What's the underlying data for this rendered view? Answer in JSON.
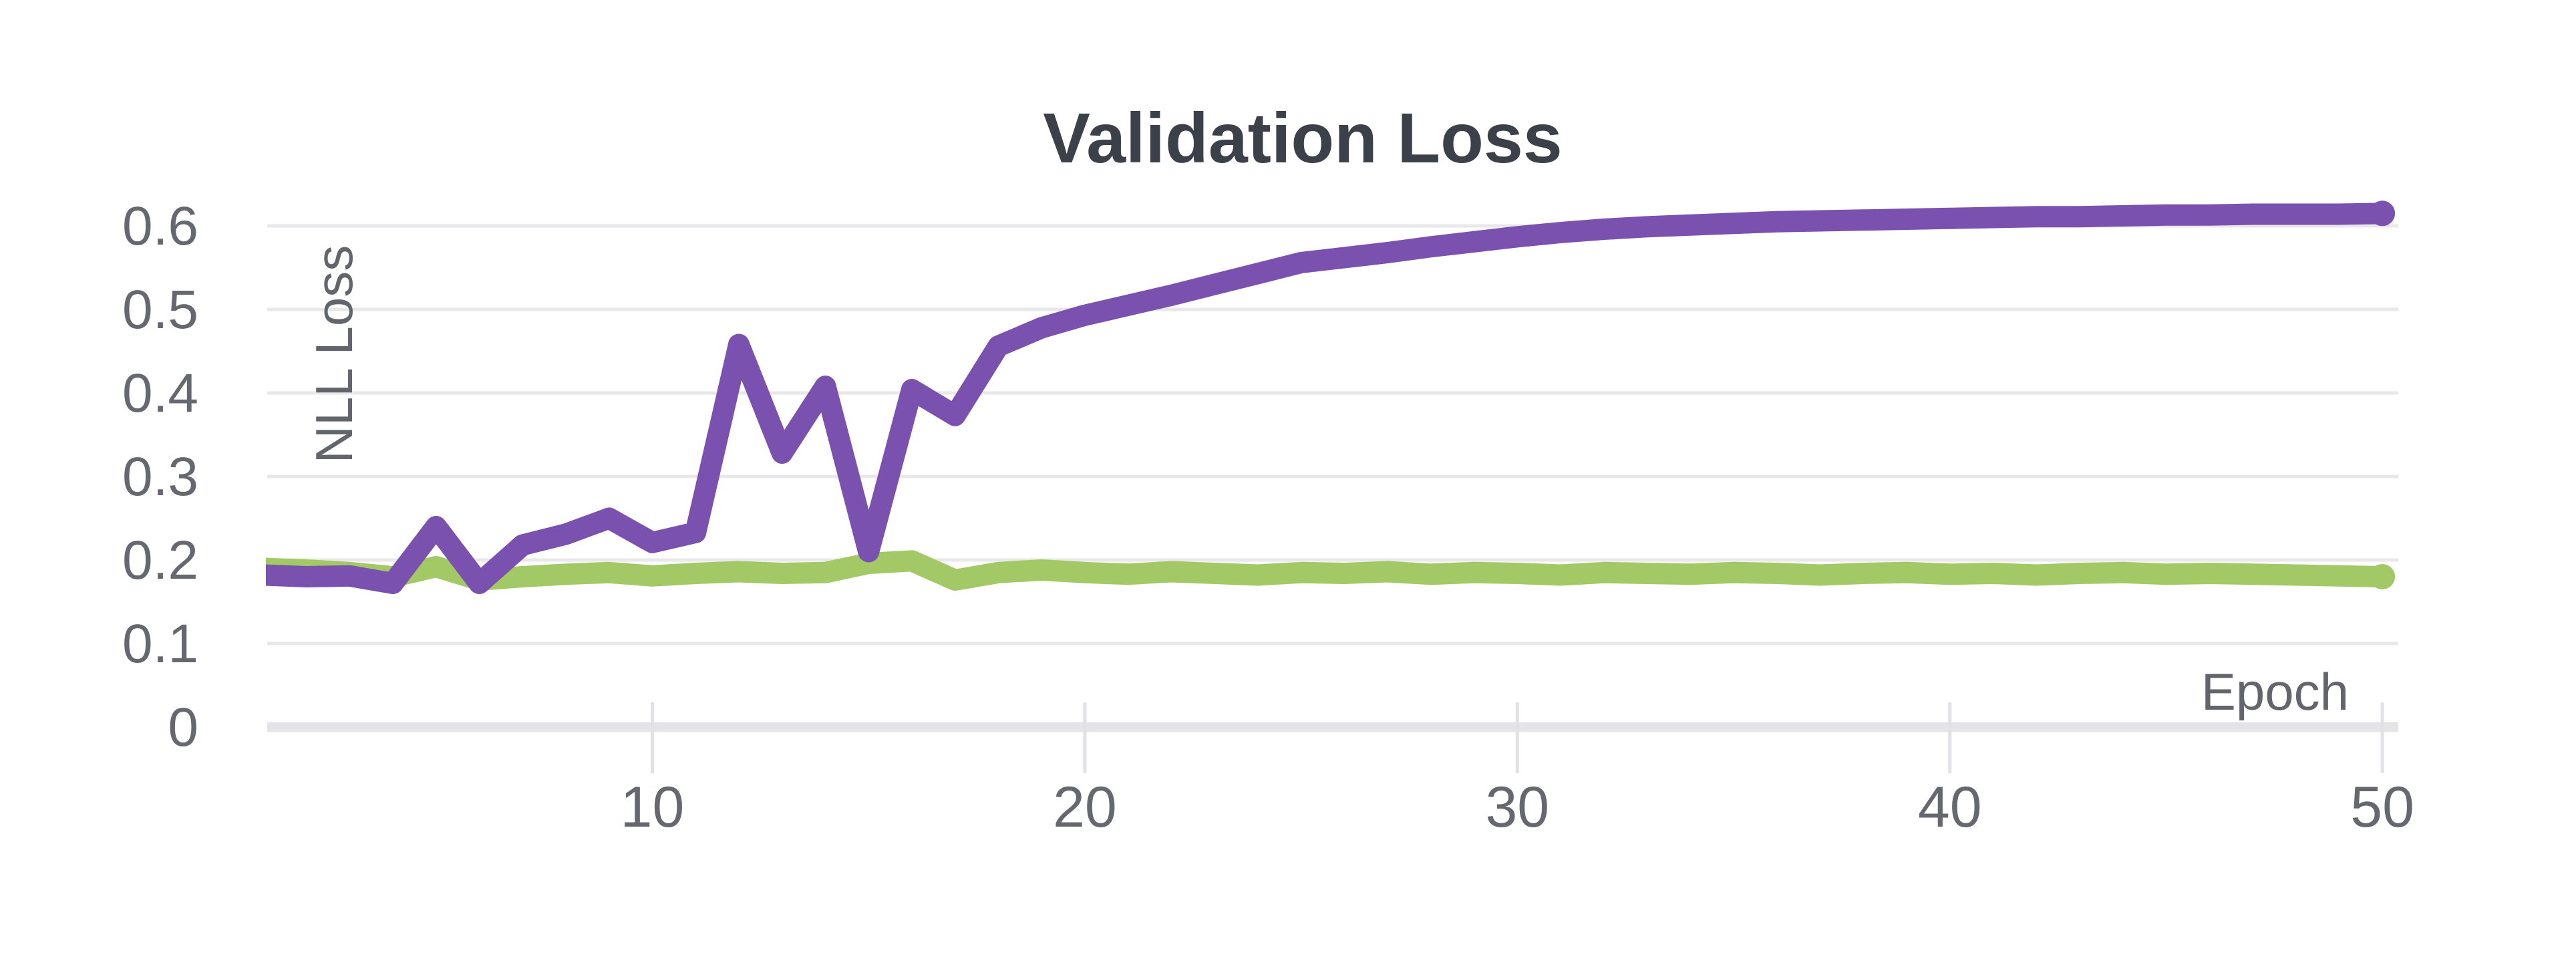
{
  "chart_data": {
    "type": "line",
    "title": "Validation Loss",
    "xlabel": "Epoch",
    "ylabel": "NLL Loss",
    "x": [
      1,
      2,
      3,
      4,
      5,
      6,
      7,
      8,
      9,
      10,
      11,
      12,
      13,
      14,
      15,
      16,
      17,
      18,
      19,
      20,
      21,
      22,
      23,
      24,
      25,
      26,
      27,
      28,
      29,
      30,
      31,
      32,
      33,
      34,
      35,
      36,
      37,
      38,
      39,
      40,
      41,
      42,
      43,
      44,
      45,
      46,
      47,
      48,
      49,
      50
    ],
    "series": [
      {
        "name": "green",
        "color": "#A3C966",
        "values": [
          0.19,
          0.188,
          0.185,
          0.18,
          0.192,
          0.176,
          0.18,
          0.183,
          0.185,
          0.181,
          0.184,
          0.186,
          0.184,
          0.185,
          0.196,
          0.199,
          0.176,
          0.185,
          0.188,
          0.185,
          0.183,
          0.186,
          0.184,
          0.182,
          0.185,
          0.184,
          0.186,
          0.183,
          0.185,
          0.184,
          0.182,
          0.185,
          0.184,
          0.183,
          0.185,
          0.184,
          0.182,
          0.184,
          0.185,
          0.183,
          0.184,
          0.182,
          0.184,
          0.185,
          0.183,
          0.184,
          0.183,
          0.182,
          0.181,
          0.18
        ]
      },
      {
        "name": "purple",
        "color": "#7B51AF",
        "values": [
          0.182,
          0.18,
          0.181,
          0.172,
          0.24,
          0.172,
          0.218,
          0.231,
          0.25,
          0.221,
          0.233,
          0.458,
          0.328,
          0.408,
          0.21,
          0.404,
          0.373,
          0.456,
          0.478,
          0.493,
          0.505,
          0.517,
          0.53,
          0.543,
          0.556,
          0.562,
          0.568,
          0.575,
          0.581,
          0.587,
          0.592,
          0.596,
          0.599,
          0.601,
          0.603,
          0.605,
          0.606,
          0.607,
          0.608,
          0.609,
          0.61,
          0.611,
          0.611,
          0.612,
          0.613,
          0.613,
          0.614,
          0.614,
          0.614,
          0.615
        ]
      }
    ],
    "x_ticks": [
      10,
      20,
      30,
      40,
      50
    ],
    "x_tick_labels": [
      "10",
      "20",
      "30",
      "40",
      "50"
    ],
    "y_ticks": [
      0,
      0.1,
      0.2,
      0.3,
      0.4,
      0.5,
      0.6
    ],
    "y_tick_labels": [
      "0",
      "0.1",
      "0.2",
      "0.3",
      "0.4",
      "0.5",
      "0.6"
    ],
    "xlim": [
      1,
      50
    ],
    "ylim": [
      0,
      0.66
    ],
    "grid": "horizontal-only",
    "legend": "none"
  },
  "colors": {
    "background": "#ffffff",
    "purple_line": "#7B51AF",
    "green_line": "#A3C966",
    "gridline": "#E8E8EB",
    "zero_axis": "#E5E5E9",
    "tick_mark": "#E2E2E6",
    "tick_label": "#66686F",
    "axis_title": "#63656C",
    "title": "#3C4149"
  }
}
